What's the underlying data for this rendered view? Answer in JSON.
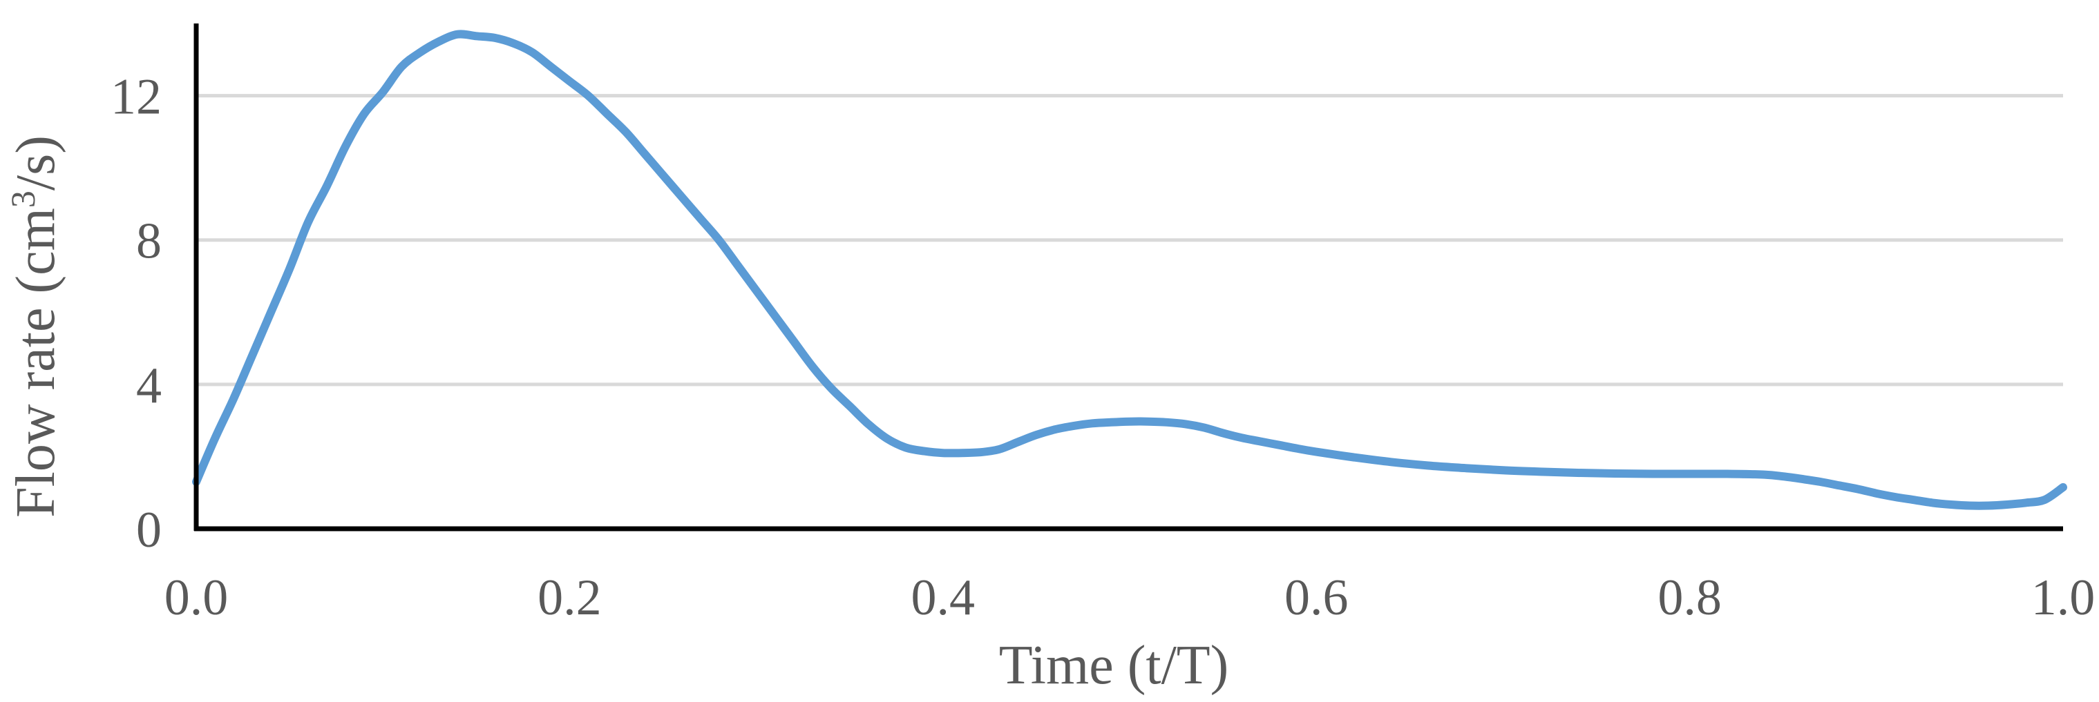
{
  "chart_data": {
    "type": "line",
    "title": "",
    "xlabel": "Time (t/T)",
    "ylabel": {
      "prefix": "Flow rate (cm",
      "superscript": "3",
      "suffix": "/s)"
    },
    "xlim": [
      0.0,
      1.0
    ],
    "ylim": [
      0,
      14
    ],
    "x_ticks": [
      "0.0",
      "0.2",
      "0.4",
      "0.6",
      "0.8",
      "1.0"
    ],
    "y_ticks": [
      "0",
      "4",
      "8",
      "12"
    ],
    "grid": {
      "horizontal": true,
      "vertical": false
    },
    "legend": "none",
    "colors": {
      "series": "#5B9BD5",
      "grid": "#D9D9D9",
      "axis": "#000000",
      "text": "#595959"
    },
    "series": [
      {
        "x": [
          0.0,
          0.01,
          0.02,
          0.03,
          0.04,
          0.05,
          0.06,
          0.07,
          0.08,
          0.09,
          0.1,
          0.11,
          0.12,
          0.13,
          0.14,
          0.15,
          0.16,
          0.17,
          0.18,
          0.19,
          0.2,
          0.21,
          0.22,
          0.23,
          0.24,
          0.25,
          0.26,
          0.27,
          0.28,
          0.29,
          0.3,
          0.31,
          0.32,
          0.33,
          0.34,
          0.35,
          0.36,
          0.37,
          0.38,
          0.39,
          0.4,
          0.41,
          0.42,
          0.43,
          0.44,
          0.45,
          0.46,
          0.47,
          0.48,
          0.49,
          0.5,
          0.51,
          0.52,
          0.53,
          0.54,
          0.55,
          0.56,
          0.57,
          0.58,
          0.59,
          0.6,
          0.62,
          0.64,
          0.66,
          0.68,
          0.7,
          0.72,
          0.74,
          0.76,
          0.78,
          0.8,
          0.82,
          0.84,
          0.85,
          0.86,
          0.87,
          0.88,
          0.89,
          0.9,
          0.91,
          0.92,
          0.93,
          0.94,
          0.95,
          0.96,
          0.97,
          0.98,
          0.99,
          1.0
        ],
        "values": [
          1.3,
          2.5,
          3.6,
          4.8,
          6.0,
          7.2,
          8.5,
          9.5,
          10.6,
          11.5,
          12.1,
          12.8,
          13.2,
          13.5,
          13.7,
          13.65,
          13.6,
          13.45,
          13.2,
          12.8,
          12.4,
          12.0,
          11.5,
          11.0,
          10.4,
          9.8,
          9.2,
          8.6,
          8.0,
          7.3,
          6.6,
          5.9,
          5.2,
          4.5,
          3.9,
          3.4,
          2.9,
          2.5,
          2.25,
          2.15,
          2.1,
          2.1,
          2.12,
          2.2,
          2.4,
          2.6,
          2.75,
          2.85,
          2.92,
          2.95,
          2.97,
          2.97,
          2.95,
          2.9,
          2.8,
          2.65,
          2.52,
          2.42,
          2.32,
          2.22,
          2.13,
          1.98,
          1.85,
          1.75,
          1.68,
          1.62,
          1.58,
          1.55,
          1.53,
          1.52,
          1.52,
          1.52,
          1.5,
          1.45,
          1.38,
          1.3,
          1.2,
          1.1,
          0.98,
          0.88,
          0.8,
          0.72,
          0.67,
          0.64,
          0.64,
          0.67,
          0.72,
          0.8,
          1.15
        ]
      }
    ]
  }
}
